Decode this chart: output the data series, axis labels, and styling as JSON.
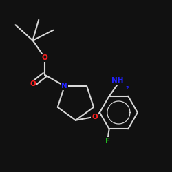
{
  "bg_color": "#111111",
  "bond_color": "#d8d8d8",
  "bond_width": 1.5,
  "atom_colors": {
    "N": "#2222ff",
    "O": "#ff2222",
    "F": "#22bb22",
    "NH2": "#2222ff"
  },
  "font_size_atom": 7.5,
  "font_size_sub": 5.0
}
